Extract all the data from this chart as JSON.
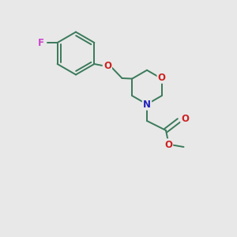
{
  "background_color": "#e8e8e8",
  "bond_color": "#3a7a5a",
  "atom_colors": {
    "F": "#cc44cc",
    "O": "#cc2222",
    "N": "#2222bb",
    "C": "#3a7a5a"
  },
  "figsize": [
    3.0,
    3.0
  ],
  "dpi": 100,
  "lw": 1.4,
  "fontsize": 8.5
}
